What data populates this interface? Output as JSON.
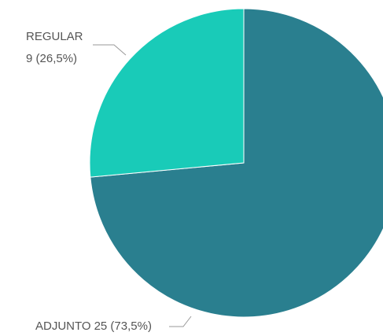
{
  "chart_data": {
    "type": "pie",
    "categories": [
      "ADJUNTO",
      "REGULAR"
    ],
    "values": [
      25,
      9
    ],
    "value_labels": [
      "25 (73,5%)",
      "9 (26,5%)"
    ],
    "colors": [
      "#2a7f8f",
      "#19cbb8"
    ]
  }
}
